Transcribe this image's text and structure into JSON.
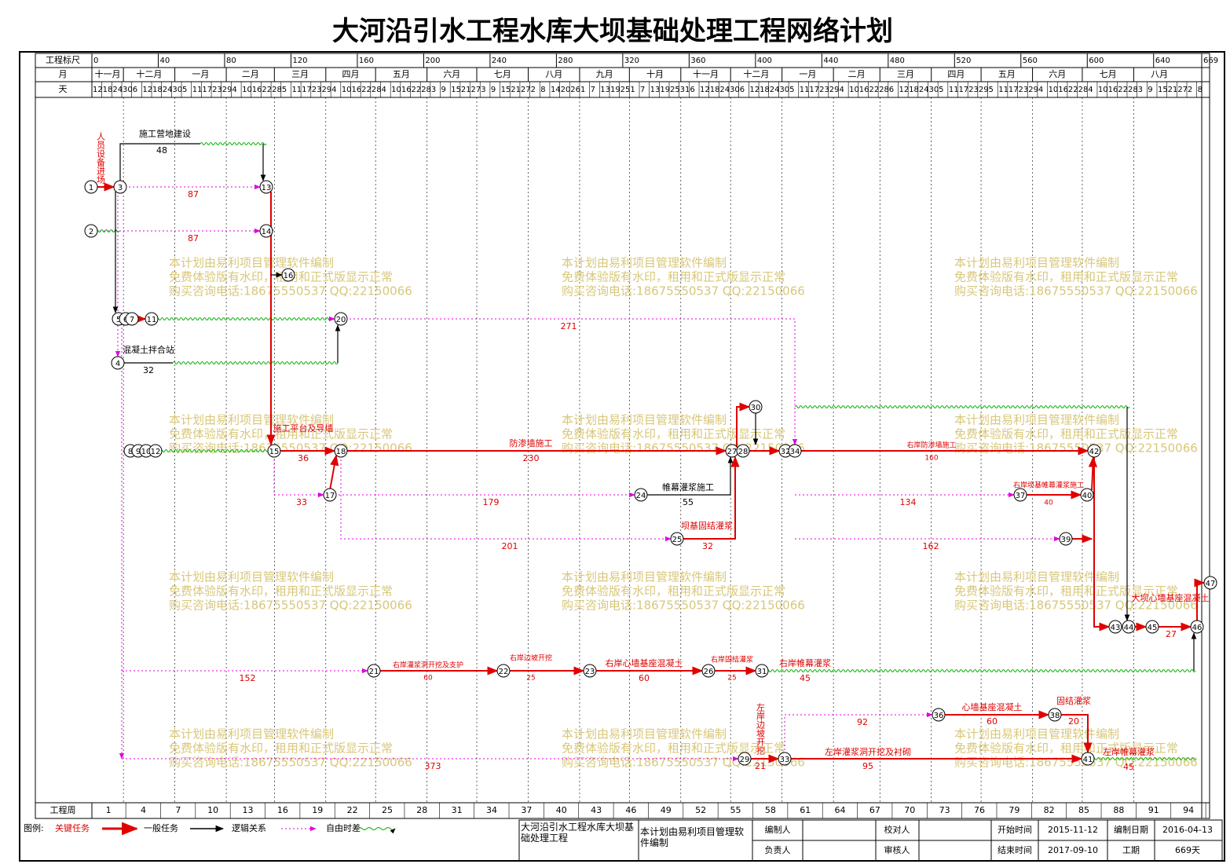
{
  "header": {
    "title": "大河沿引水工程水库大坝基础处理工程网络计划",
    "scale_label": "工程标尺",
    "month_label": "月",
    "day_label": "天",
    "week_label": "工程周"
  },
  "scale_ticks": [
    0,
    40,
    80,
    120,
    160,
    200,
    240,
    280,
    320,
    360,
    400,
    440,
    480,
    520,
    560,
    600,
    640,
    669
  ],
  "months": [
    "十一月",
    "十二月",
    "一月",
    "二月",
    "三月",
    "四月",
    "五月",
    "六月",
    "七月",
    "八月",
    "九月",
    "十月",
    "十一月",
    "十二月",
    "一月",
    "二月",
    "三月",
    "四月",
    "五月",
    "六月",
    "七月",
    "八月"
  ],
  "days": [
    12,
    18,
    24,
    30,
    6,
    12,
    18,
    24,
    30,
    5,
    11,
    17,
    23,
    29,
    4,
    10,
    16,
    22,
    28,
    5,
    11,
    17,
    23,
    29,
    4,
    10,
    16,
    22,
    28,
    4,
    10,
    16,
    22,
    28,
    3,
    9,
    15,
    21,
    27,
    3,
    9,
    15,
    21,
    27,
    2,
    8,
    14,
    20,
    26,
    1,
    7,
    13,
    19,
    25,
    1,
    7,
    13,
    19,
    25,
    31,
    6,
    12,
    18,
    24,
    30,
    6,
    12,
    18,
    24,
    30,
    5,
    11,
    17,
    23,
    29,
    4,
    10,
    16,
    22,
    28,
    6,
    12,
    18,
    24,
    30,
    5,
    11,
    17,
    23,
    29,
    5,
    11,
    17,
    23,
    29,
    4,
    10,
    16,
    22,
    28,
    4,
    10,
    16,
    22,
    28,
    3,
    9,
    15,
    21,
    27,
    2,
    8
  ],
  "weeks": [
    1,
    4,
    7,
    10,
    13,
    16,
    19,
    22,
    25,
    28,
    31,
    34,
    37,
    40,
    43,
    46,
    49,
    52,
    55,
    58,
    61,
    64,
    67,
    70,
    73,
    76,
    79,
    82,
    85,
    88,
    91,
    94
  ],
  "nodes": [
    "1",
    "2",
    "3",
    "4",
    "5",
    "6",
    "7",
    "11",
    "13",
    "14",
    "16",
    "20",
    "8",
    "9",
    "10",
    "12",
    "15",
    "18",
    "17",
    "24",
    "25",
    "27",
    "28",
    "30",
    "32",
    "34",
    "21",
    "22",
    "23",
    "26",
    "31",
    "29",
    "33",
    "36",
    "38",
    "41",
    "37",
    "40",
    "39",
    "42",
    "43",
    "44",
    "45",
    "46",
    "47"
  ],
  "activities": [
    {
      "name": "施工营地建设",
      "duration": 48
    },
    {
      "name": "混凝土拌合站",
      "duration": 32
    },
    {
      "name": "防渗墙施工",
      "duration": 230
    },
    {
      "name": "施工平台及导墙",
      "duration": 36
    },
    {
      "name": "帷幕灌浆施工",
      "duration": 55
    },
    {
      "name": "坝基固结灌浆",
      "duration": 32
    },
    {
      "name": "右岸防渗墙施工",
      "duration": 160
    },
    {
      "name": "右岸坝基帷幕灌浆施工",
      "duration": 40
    },
    {
      "name": "右岸灌浆洞开挖及支护",
      "duration": 60
    },
    {
      "name": "右岸边坡开挖",
      "duration": 25
    },
    {
      "name": "右岸心墙基座混凝土",
      "duration": 60
    },
    {
      "name": "右岸固结灌浆",
      "duration": 25
    },
    {
      "name": "右岸帷幕灌浆",
      "duration": 45
    },
    {
      "name": "心墙基座混凝土",
      "duration": 60
    },
    {
      "name": "固结灌浆",
      "duration": 20
    },
    {
      "name": "左岸灌浆洞开挖及衬砌",
      "duration": 95
    },
    {
      "name": "左岸帷幕灌浆",
      "duration": 45
    },
    {
      "name": "大坝心墙基座混凝土",
      "duration": 27
    },
    {
      "name": "左岸边坡开挖",
      "duration": 21
    },
    {
      "name": "人员设备进场"
    }
  ],
  "floats": [
    87,
    87,
    271,
    179,
    201,
    134,
    162,
    152,
    373,
    92,
    33
  ],
  "watermark": [
    "本计划由易利项目管理软件编制",
    "免费体验版有水印，租用和正式版显示正常",
    "购买咨询电话:18675550537 QQ:22150066"
  ],
  "legend": {
    "title": "图例:",
    "critical": "关键任务",
    "normal": "一般任务",
    "logic": "逻辑关系",
    "float": "自由时差"
  },
  "footer": {
    "project": "大河沿引水工程水库大坝基础处理工程",
    "software": "本计划由易利项目管理软件编制",
    "editor": "编制人",
    "checker": "校对人",
    "start_label": "开始时间",
    "start": "2015-11-12",
    "date_label": "编制日期",
    "date": "2016-04-13",
    "leader": "负责人",
    "auditor": "审核人",
    "end_label": "结束时间",
    "end": "2017-09-10",
    "duration_label": "工期",
    "duration": {
      "value": 669,
      "label": "669天"
    }
  }
}
